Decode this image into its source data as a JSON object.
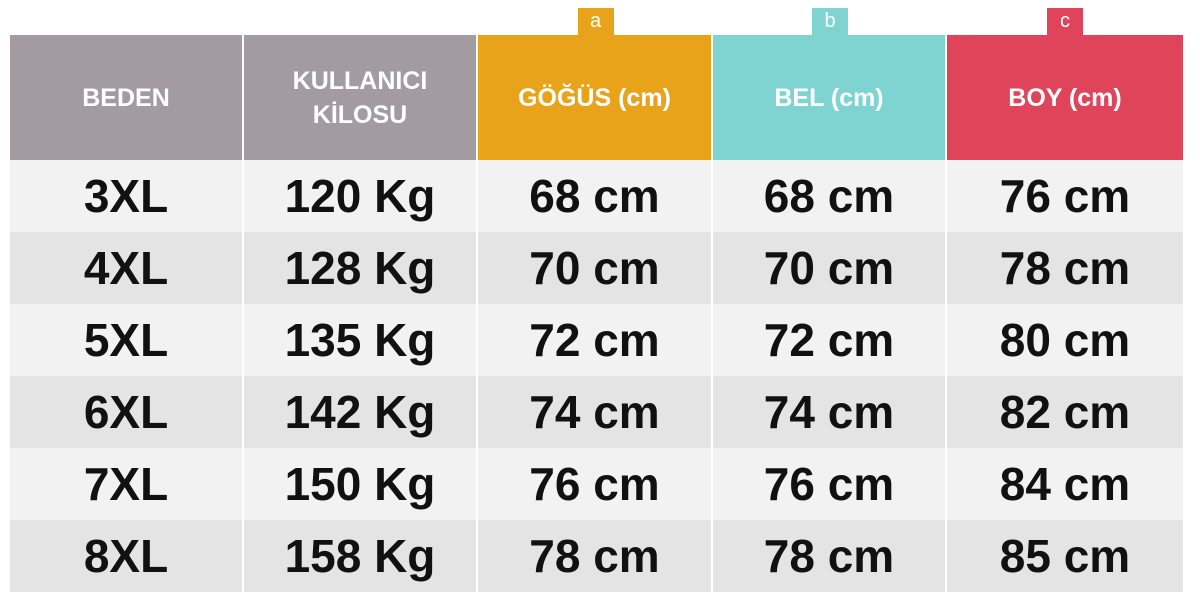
{
  "table": {
    "tabs": [
      "a",
      "b",
      "c"
    ],
    "header": [
      "BEDEN",
      "KULLANICI KİLOSU",
      "GÖĞÜS (cm)",
      "BEL (cm)",
      "BOY (cm)"
    ],
    "rows": [
      [
        "3XL",
        "120 Kg",
        "68 cm",
        "68 cm",
        "76 cm"
      ],
      [
        "4XL",
        "128 Kg",
        "70 cm",
        "70 cm",
        "78 cm"
      ],
      [
        "5XL",
        "135 Kg",
        "72 cm",
        "72 cm",
        "80 cm"
      ],
      [
        "6XL",
        "142 Kg",
        "74 cm",
        "74 cm",
        "82 cm"
      ],
      [
        "7XL",
        "150 Kg",
        "76 cm",
        "76 cm",
        "84 cm"
      ],
      [
        "8XL",
        "158 Kg",
        "78 cm",
        "78 cm",
        "85 cm"
      ]
    ]
  }
}
